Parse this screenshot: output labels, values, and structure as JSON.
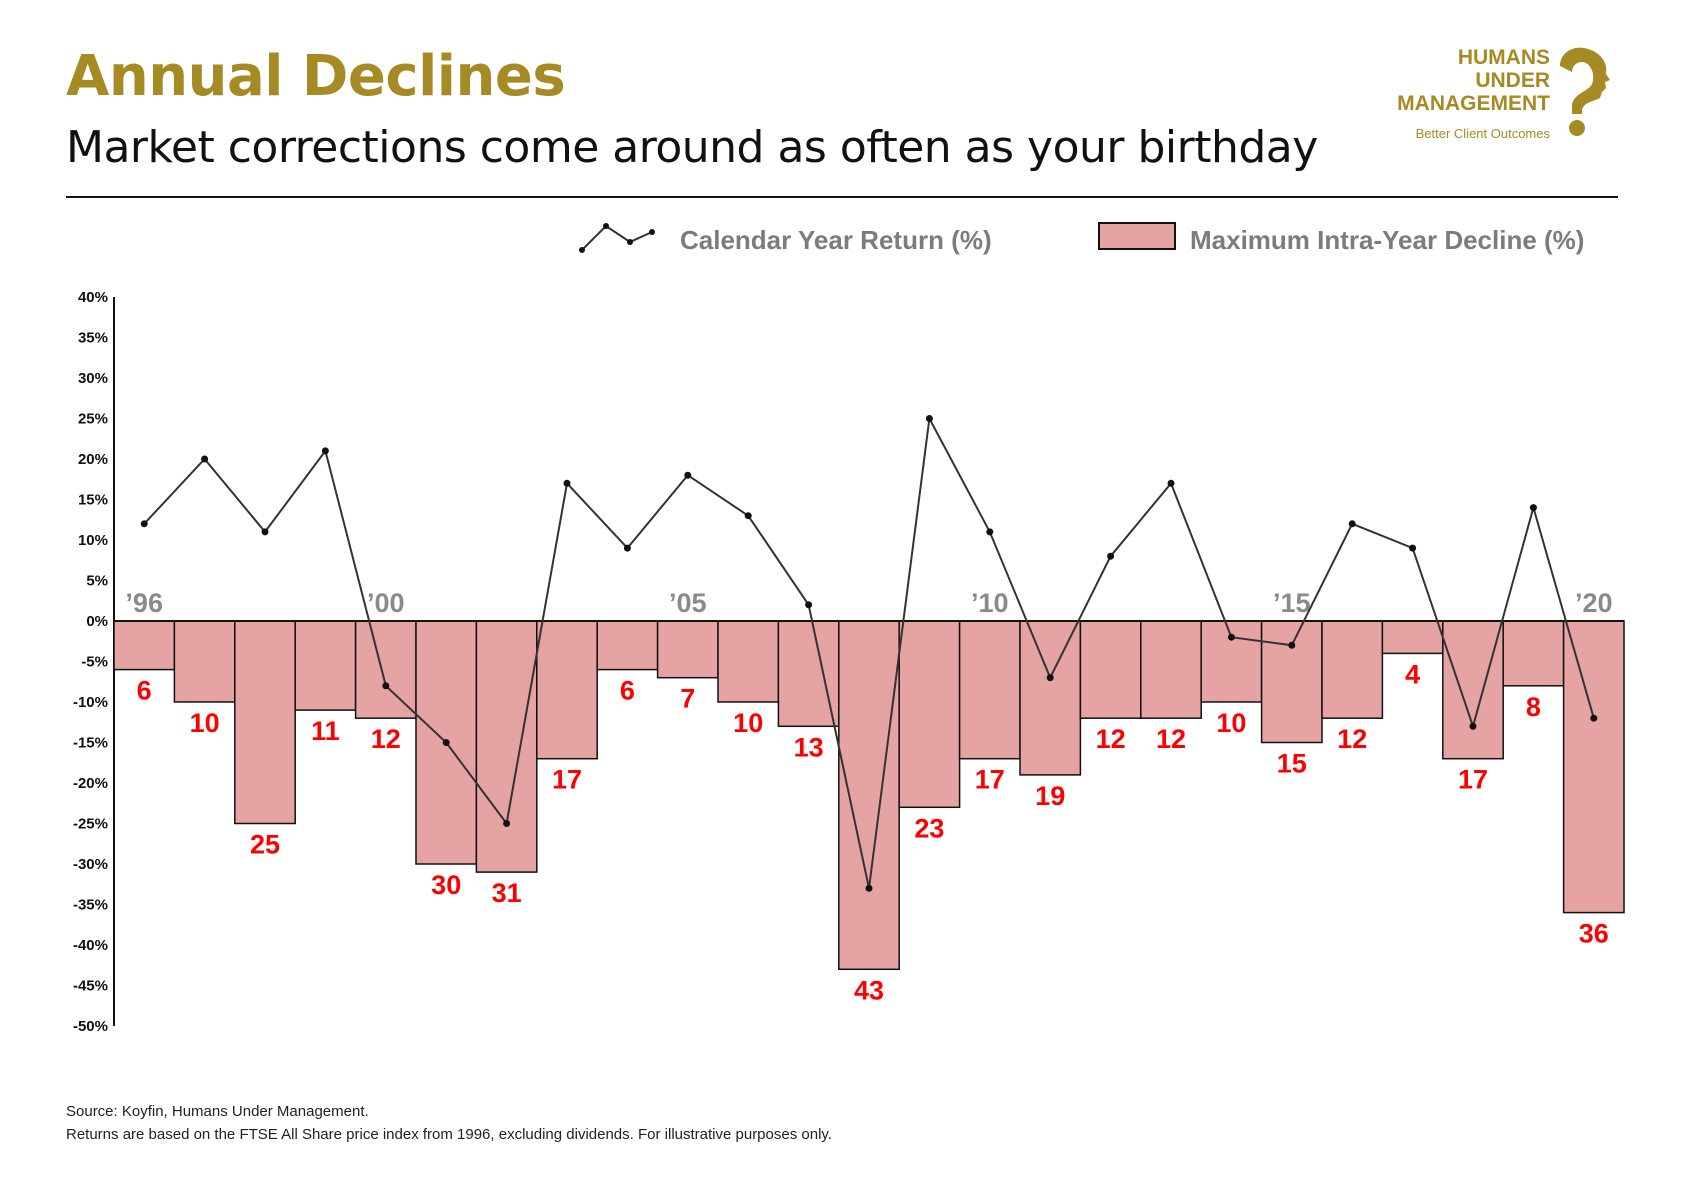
{
  "header": {
    "title": "Annual Declines",
    "subtitle": "Market corrections come around as often as your birthday"
  },
  "logo": {
    "line1": "HUMANS",
    "line2": "UNDER",
    "line3": "MANAGEMENT",
    "tagline": "Better Client Outcomes",
    "icon": "question-mark-head-icon"
  },
  "legend": {
    "line_label": "Calendar Year Return (%)",
    "bar_label": "Maximum Intra-Year Decline (%)"
  },
  "footer": {
    "source": "Source: Koyfin, Humans Under Management.",
    "note": "Returns are based on the FTSE All Share price index from 1996, excluding dividends. For illustrative purposes only."
  },
  "colors": {
    "brand_gold": "#a68a23",
    "bar_fill": "#e5a3a3",
    "value_label": "#ff0000",
    "line": "#333333"
  },
  "chart_data": {
    "type": "bar",
    "x": [
      1996,
      1997,
      1998,
      1999,
      2000,
      2001,
      2002,
      2003,
      2004,
      2005,
      2006,
      2007,
      2008,
      2009,
      2010,
      2011,
      2012,
      2013,
      2014,
      2015,
      2016,
      2017,
      2018,
      2019,
      2020
    ],
    "year_labels": [
      "’96",
      "’00",
      "’05",
      "’10",
      "’15",
      "’20"
    ],
    "year_label_years": [
      1996,
      2000,
      2005,
      2010,
      2015,
      2020
    ],
    "ylim": [
      -50,
      40
    ],
    "y_ticks": [
      "40%",
      "35%",
      "30%",
      "25%",
      "20%",
      "15%",
      "10%",
      "5%",
      "0%",
      "-5%",
      "-10%",
      "-15%",
      "-20%",
      "-25%",
      "-30%",
      "-35%",
      "-40%",
      "-45%",
      "-50%"
    ],
    "y_tick_values": [
      40,
      35,
      30,
      25,
      20,
      15,
      10,
      5,
      0,
      -5,
      -10,
      -15,
      -20,
      -25,
      -30,
      -35,
      -40,
      -45,
      -50
    ],
    "series": [
      {
        "name": "Maximum Intra-Year Decline (%)",
        "kind": "bar",
        "values": [
          6,
          10,
          25,
          11,
          12,
          30,
          31,
          17,
          6,
          7,
          10,
          13,
          43,
          23,
          17,
          19,
          12,
          12,
          10,
          15,
          12,
          4,
          17,
          8,
          36
        ]
      },
      {
        "name": "Calendar Year Return (%)",
        "kind": "line",
        "values": [
          12,
          20,
          11,
          21,
          -8,
          -15,
          -25,
          17,
          9,
          18,
          13,
          2,
          -33,
          25,
          11,
          -7,
          8,
          17,
          -2,
          -3,
          12,
          9,
          -13,
          14,
          -12
        ]
      }
    ],
    "grid": false,
    "legend_position": "top-right"
  }
}
